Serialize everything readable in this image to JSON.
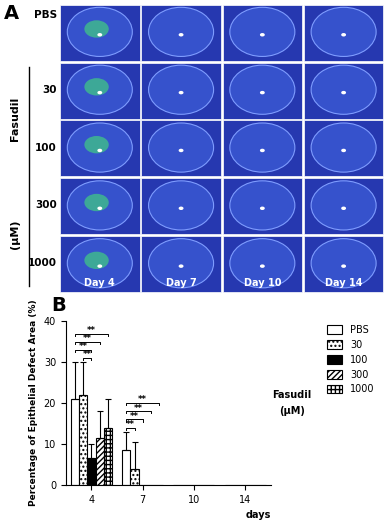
{
  "panel_a": {
    "label": "A",
    "rows": [
      "PBS",
      "30",
      "100",
      "300",
      "1000"
    ],
    "group_label": "Fasudil",
    "unit": "(μM)",
    "columns": [
      "Day 4",
      "Day 7",
      "Day 10",
      "Day 14"
    ]
  },
  "chart_data": {
    "type": "bar",
    "title": "B",
    "x_label": "days",
    "y_label": "Percentage of Epithelial Defect Area (%)",
    "categories": [
      "4",
      "7",
      "10",
      "14"
    ],
    "series": [
      {
        "name": "PBS",
        "color": "#ffffff",
        "values": [
          21,
          8.5,
          0,
          0
        ],
        "errors": [
          9,
          4.5,
          0,
          0
        ]
      },
      {
        "name": "30",
        "color": "#ffffff",
        "values": [
          22,
          4,
          0,
          0
        ],
        "errors": [
          8,
          6.5,
          0,
          0
        ]
      },
      {
        "name": "100",
        "color": "#000000",
        "values": [
          6.5,
          0,
          0,
          0
        ],
        "errors": [
          3.5,
          0,
          0,
          0
        ]
      },
      {
        "name": "300",
        "color": "#ffffff",
        "values": [
          11.5,
          0,
          0,
          0
        ],
        "errors": [
          6.5,
          0,
          0,
          0
        ]
      },
      {
        "name": "1000",
        "color": "#ffffff",
        "values": [
          14,
          0,
          0,
          0
        ],
        "errors": [
          7,
          0,
          0,
          0
        ]
      }
    ],
    "legend": "upper right",
    "legend_annotations": [
      "Fasudil",
      "(μM)"
    ],
    "annotations": [
      {
        "category": "4",
        "from": "30",
        "to": "100",
        "label": "**"
      },
      {
        "category": "4",
        "from": "PBS",
        "to": "100",
        "label": "**"
      },
      {
        "category": "4",
        "from": "PBS",
        "to": "300",
        "label": "**"
      },
      {
        "category": "4",
        "from": "PBS",
        "to": "1000",
        "label": "**"
      },
      {
        "category": "7",
        "from": "PBS",
        "to": "30",
        "label": "**"
      },
      {
        "category": "7",
        "from": "PBS",
        "to": "100",
        "label": "**"
      },
      {
        "category": "7",
        "from": "PBS",
        "to": "300",
        "label": "**"
      },
      {
        "category": "7",
        "from": "PBS",
        "to": "1000",
        "label": "**"
      }
    ],
    "ylim": [
      0,
      40
    ],
    "yticks": [
      0,
      10,
      20,
      30,
      40
    ]
  }
}
